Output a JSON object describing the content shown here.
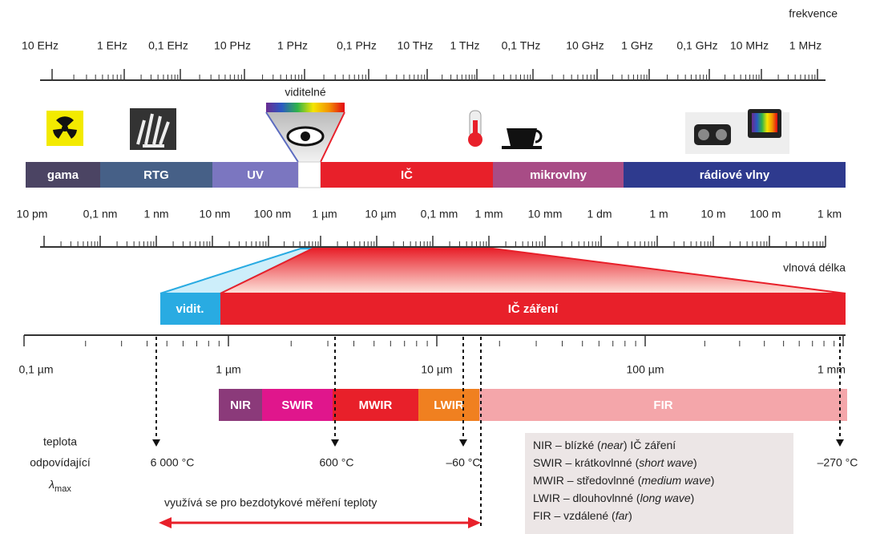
{
  "frequency": {
    "title": "frekvence",
    "labels": [
      "10 EHz",
      "1 EHz",
      "0,1 EHz",
      "10 PHz",
      "1 PHz",
      "0,1 PHz",
      "10 THz",
      "1 THz",
      "0,1 THz",
      "10 GHz",
      "1 GHz",
      "0,1 GHz",
      "10 MHz",
      "1 MHz"
    ]
  },
  "visible_label": "viditelné",
  "bands": [
    "gama",
    "RTG",
    "UV",
    "IČ",
    "mikrovlny",
    "rádiové vlny"
  ],
  "wavelength": {
    "title": "vlnová délka",
    "labels": [
      "10 pm",
      "0,1 nm",
      "1 nm",
      "10 nm",
      "100 nm",
      "1 µm",
      "10 µm",
      "0,1 mm",
      "1 mm",
      "10 mm",
      "1 dm",
      "1 m",
      "10 m",
      "100 m",
      "1 km"
    ]
  },
  "zoom_bands": [
    "vidit.",
    "IČ záření"
  ],
  "scale_labels": [
    "0,1 µm",
    "1 µm",
    "10 µm",
    "100 µm",
    "1 mm"
  ],
  "sub_bands": [
    "NIR",
    "SWIR",
    "MWIR",
    "LWIR",
    "FIR"
  ],
  "temperature": {
    "lines": [
      "teplota",
      "odpovídající"
    ],
    "symbol": "λ",
    "subscript": "max",
    "values": [
      "6 000 °C",
      "600 °C",
      "–60 °C",
      "–270 °C"
    ]
  },
  "legend": [
    [
      "NIR – blízké (",
      "near",
      ") IČ záření"
    ],
    [
      "SWIR – krátkovlnné (",
      "short wave",
      ")"
    ],
    [
      "MWIR – středovlnné (",
      "medium wave",
      ")"
    ],
    [
      "LWIR – dlouhovlnné (",
      "long wave",
      ")"
    ],
    [
      "FIR – vzdálené (",
      "far",
      ")"
    ]
  ],
  "usage_note": "využívá se pro bezdotykové měření teploty"
}
